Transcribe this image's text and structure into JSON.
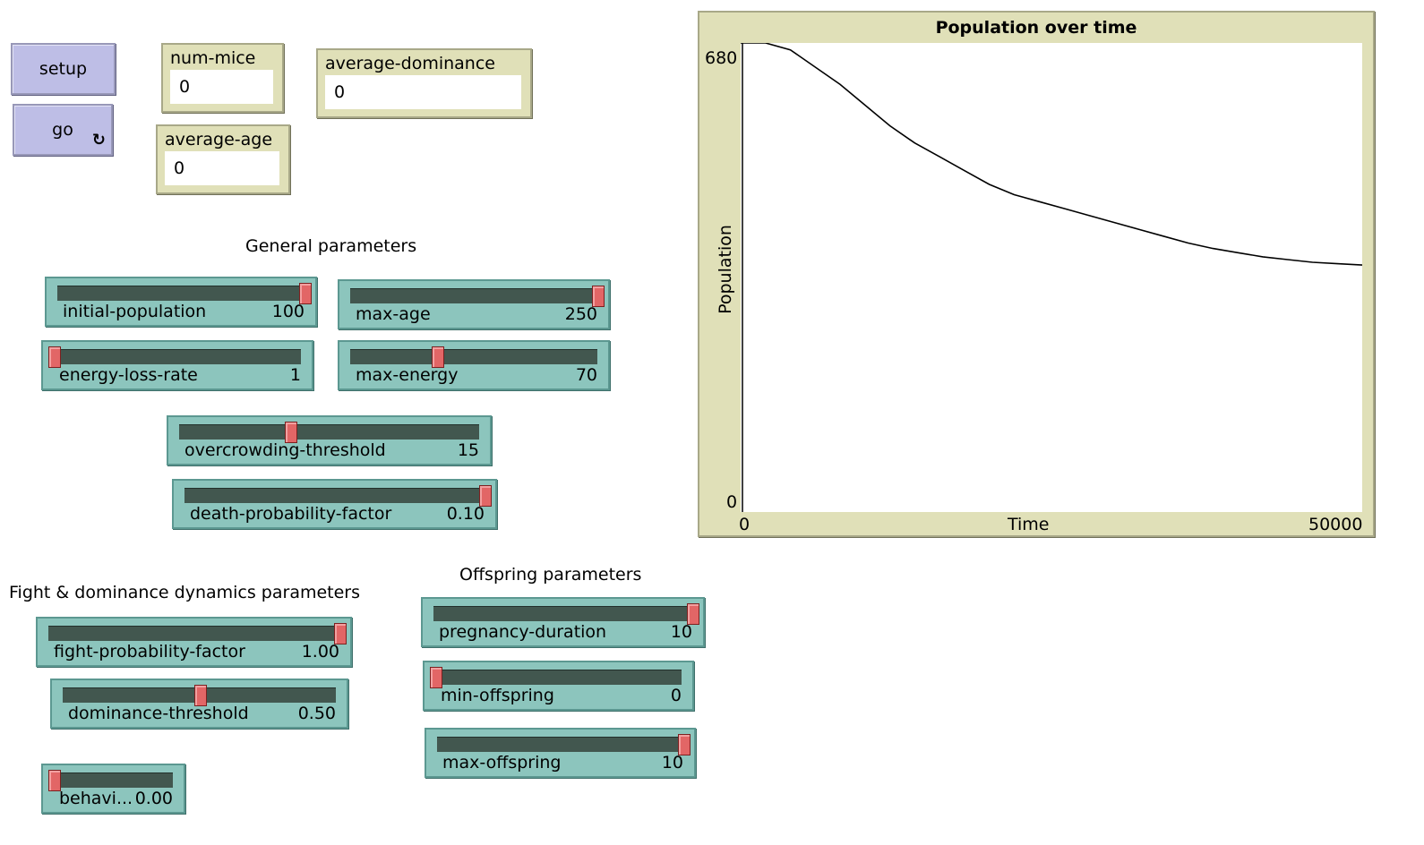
{
  "buttons": {
    "setup_label": "setup",
    "go_label": "go",
    "go_forever_icon": "↻"
  },
  "monitors": {
    "num_mice": {
      "label": "num-mice",
      "value": "0"
    },
    "average_dominance": {
      "label": "average-dominance",
      "value": "0"
    },
    "average_age": {
      "label": "average-age",
      "value": "0"
    }
  },
  "sections": {
    "general": "General parameters",
    "fight": "Fight & dominance dynamics parameters",
    "offspring": "Offspring parameters"
  },
  "sliders": {
    "initial_population": {
      "label": "initial-population",
      "value": "100",
      "fraction": 1.0
    },
    "max_age": {
      "label": "max-age",
      "value": "250",
      "fraction": 1.0
    },
    "energy_loss_rate": {
      "label": "energy-loss-rate",
      "value": "1",
      "fraction": 0.0
    },
    "max_energy": {
      "label": "max-energy",
      "value": "70",
      "fraction": 0.35
    },
    "overcrowding_threshold": {
      "label": "overcrowding-threshold",
      "value": "15",
      "fraction": 0.37
    },
    "death_probability_factor": {
      "label": "death-probability-factor",
      "value": "0.10",
      "fraction": 1.0
    },
    "fight_probability_factor": {
      "label": "fight-probability-factor",
      "value": "1.00",
      "fraction": 1.0
    },
    "dominance_threshold": {
      "label": "dominance-threshold",
      "value": "0.50",
      "fraction": 0.5
    },
    "behavior": {
      "label": "behavi...",
      "value": "0.00",
      "fraction": 0.0
    },
    "pregnancy_duration": {
      "label": "pregnancy-duration",
      "value": "10",
      "fraction": 1.0
    },
    "min_offspring": {
      "label": "min-offspring",
      "value": "0",
      "fraction": 0.0
    },
    "max_offspring": {
      "label": "max-offspring",
      "value": "10",
      "fraction": 1.0
    }
  },
  "plot": {
    "title": "Population over time",
    "ylabel": "Population",
    "xlabel": "Time",
    "y_max_label": "680",
    "y_min_label": "0",
    "x_min_label": "0",
    "x_max_label": "50000"
  },
  "chart_data": {
    "type": "line",
    "title": "Population over time",
    "xlabel": "Time",
    "ylabel": "Population",
    "xlim": [
      0,
      50000
    ],
    "ylim": [
      0,
      680
    ],
    "series": [
      {
        "color": "#000000",
        "x": [
          0,
          2000,
          4000,
          6000,
          8000,
          10000,
          12000,
          14000,
          16000,
          18000,
          20000,
          22000,
          24000,
          26000,
          28000,
          30000,
          32000,
          34000,
          36000,
          38000,
          40000,
          42000,
          44000,
          46000,
          48000,
          50000
        ],
        "y": [
          680,
          680,
          670,
          645,
          620,
          590,
          560,
          535,
          515,
          495,
          475,
          460,
          450,
          440,
          430,
          420,
          410,
          400,
          390,
          382,
          376,
          370,
          366,
          362,
          360,
          358
        ]
      }
    ]
  }
}
